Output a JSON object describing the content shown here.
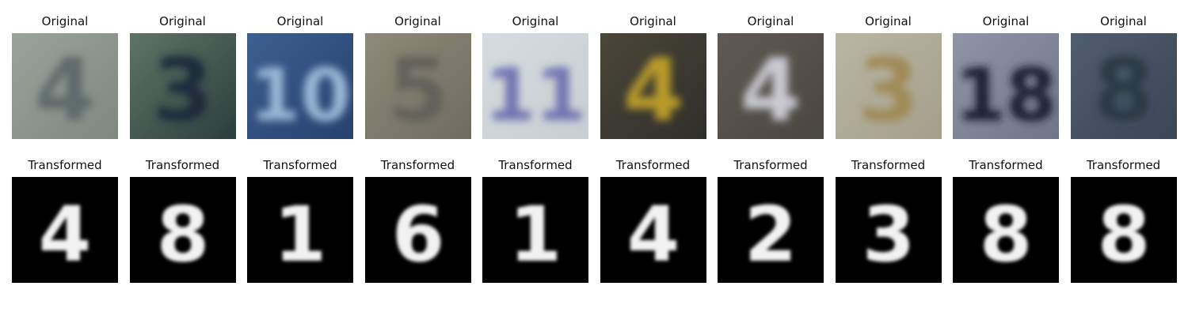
{
  "rows": [
    {
      "title": "Original",
      "images": [
        {
          "kind": "photo",
          "digit": "4",
          "bg1": "#9aa29b",
          "bg2": "#7f8880",
          "fg": "#5f6a6c"
        },
        {
          "kind": "photo",
          "digit": "3",
          "bg1": "#5f7467",
          "bg2": "#2c3e3c",
          "fg": "#1e2a3a"
        },
        {
          "kind": "photo",
          "digit": "10",
          "bg1": "#3d5f8f",
          "bg2": "#26416e",
          "fg": "#9ab7d6"
        },
        {
          "kind": "photo",
          "digit": "5",
          "bg1": "#8e8a79",
          "bg2": "#6f6c5f",
          "fg": "#62605a"
        },
        {
          "kind": "photo",
          "digit": "11",
          "bg1": "#d5dcdf",
          "bg2": "#c8cfd3",
          "fg": "#6f74b0"
        },
        {
          "kind": "photo",
          "digit": "4",
          "bg1": "#4a4638",
          "bg2": "#2f2e2b",
          "fg": "#b89a2a"
        },
        {
          "kind": "photo",
          "digit": "4",
          "bg1": "#5f5a52",
          "bg2": "#4a4640",
          "fg": "#c9c9d2"
        },
        {
          "kind": "photo",
          "digit": "3",
          "bg1": "#b9b6a2",
          "bg2": "#a39f8a",
          "fg": "#a08a56"
        },
        {
          "kind": "photo",
          "digit": "18",
          "bg1": "#8f94a6",
          "bg2": "#707588",
          "fg": "#1a1c34"
        },
        {
          "kind": "photo",
          "digit": "8",
          "bg1": "#4f5d70",
          "bg2": "#3b4657",
          "fg": "#2a3a44"
        }
      ]
    },
    {
      "title": "Transformed",
      "images": [
        {
          "kind": "mnist",
          "digit": "4"
        },
        {
          "kind": "mnist",
          "digit": "8"
        },
        {
          "kind": "mnist",
          "digit": "1"
        },
        {
          "kind": "mnist",
          "digit": "6"
        },
        {
          "kind": "mnist",
          "digit": "1"
        },
        {
          "kind": "mnist",
          "digit": "4"
        },
        {
          "kind": "mnist",
          "digit": "2"
        },
        {
          "kind": "mnist",
          "digit": "3"
        },
        {
          "kind": "mnist",
          "digit": "8"
        },
        {
          "kind": "mnist",
          "digit": "8"
        }
      ]
    }
  ]
}
